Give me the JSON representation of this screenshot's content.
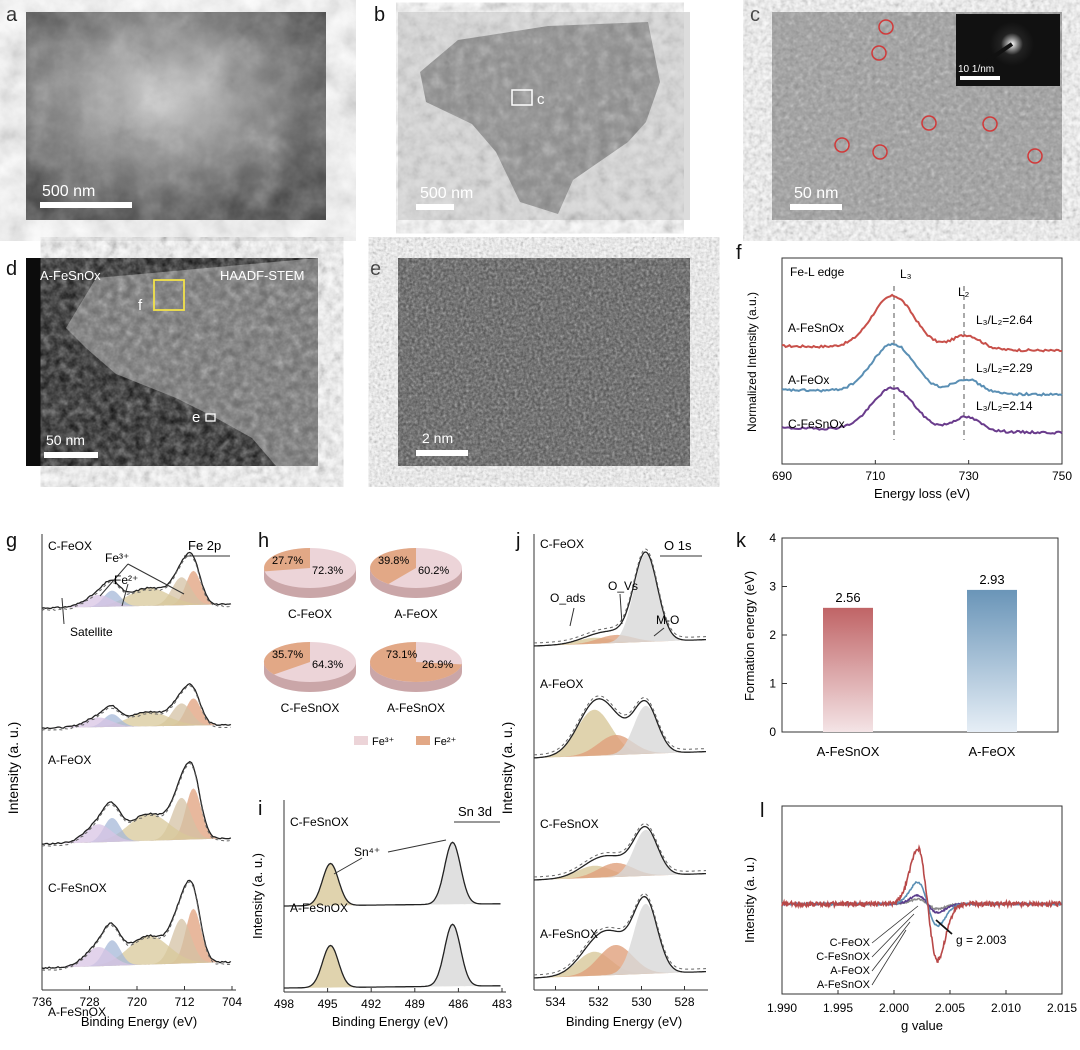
{
  "panels": {
    "a": {
      "letter": "a",
      "scale": "500 nm"
    },
    "b": {
      "letter": "b",
      "scale": "500 nm",
      "box_label": "c"
    },
    "c": {
      "letter": "c",
      "scale": "50 nm",
      "inset_scale": "10 1/nm"
    },
    "d": {
      "letter": "d",
      "sample": "A-FeSnOx",
      "mode": "HAADF-STEM",
      "scale": "50 nm",
      "label_f": "f",
      "label_e": "e"
    },
    "e": {
      "letter": "e",
      "scale": "2 nm"
    },
    "f": {
      "letter": "f",
      "title": "Fe-L edge",
      "xlabel": "Energy loss (eV)",
      "ylabel": "Normalized Intensity (a.u.)",
      "peak1": "L₃",
      "peak2": "L₂"
    },
    "g": {
      "letter": "g",
      "title": "Fe 2p",
      "xlabel": "Binding Energy (eV)",
      "ylabel": "Intensity (a. u.)",
      "fe3": "Fe³⁺",
      "fe2": "Fe²⁺",
      "satellite": "Satellite"
    },
    "h": {
      "letter": "h",
      "legend_fe3": "Fe³⁺",
      "legend_fe2": "Fe²⁺"
    },
    "i": {
      "letter": "i",
      "title": "Sn 3d",
      "xlabel": "Binding Energy (eV)",
      "ylabel": "Intensity (a. u.)",
      "sn4": "Sn⁴⁺"
    },
    "j": {
      "letter": "j",
      "title": "O 1s",
      "xlabel": "Binding Energy (eV)",
      "ylabel": "Intensity (a. u.)",
      "oads": "O_ads",
      "ovs": "O_Vs",
      "mo": "M-O"
    },
    "k": {
      "letter": "k",
      "ylabel": "Formation energy (eV)"
    },
    "l": {
      "letter": "l",
      "xlabel": "g value",
      "ylabel": "Intensity (a. u.)",
      "g_annot": "g = 2.003"
    }
  },
  "chart_data": [
    {
      "id": "f",
      "type": "line",
      "xlim": [
        690,
        750
      ],
      "xticks": [
        690,
        710,
        730,
        750
      ],
      "series": [
        {
          "name": "A-FeSnOx",
          "ratio": "L₃/L₂=2.64",
          "color": "#c8504a"
        },
        {
          "name": "A-FeOx",
          "ratio": "L₃/L₂=2.29",
          "color": "#5a8fb4"
        },
        {
          "name": "C-FeSnOx",
          "ratio": "L₃/L₂=2.14",
          "color": "#6a3c8c"
        }
      ],
      "markers": [
        714,
        729
      ]
    },
    {
      "id": "g",
      "type": "line",
      "xlim": [
        736,
        704
      ],
      "xticks": [
        736,
        728,
        720,
        712,
        704
      ],
      "series": [
        {
          "name": "C-FeOx"
        },
        {
          "name": "A-FeOx"
        },
        {
          "name": "C-FeSnOx"
        },
        {
          "name": "A-FeSnOx"
        }
      ]
    },
    {
      "id": "h",
      "type": "pie",
      "pies": [
        {
          "name": "C-FeOx",
          "fe3": 72.3,
          "fe2": 27.7,
          "fe3_label": "72.3%",
          "fe2_label": "27.7%"
        },
        {
          "name": "A-FeOx",
          "fe3": 60.2,
          "fe2": 39.8,
          "fe3_label": "60.2%",
          "fe2_label": "39.8%"
        },
        {
          "name": "C-FeSnOx",
          "fe3": 64.3,
          "fe2": 35.7,
          "fe3_label": "64.3%",
          "fe2_label": "35.7%"
        },
        {
          "name": "A-FeSnOx",
          "fe3": 26.9,
          "fe2": 73.1,
          "fe3_label": "26.9%",
          "fe2_label": "73.1%"
        }
      ],
      "colors": {
        "fe3": "#ecd4d8",
        "fe2": "#e2a886"
      }
    },
    {
      "id": "i",
      "type": "line",
      "xlim": [
        498,
        483
      ],
      "xticks": [
        498,
        495,
        492,
        489,
        486,
        483
      ],
      "series": [
        {
          "name": "C-FeSnOx"
        },
        {
          "name": "A-FeSnOx"
        }
      ],
      "peaks": [
        494.8,
        486.4
      ]
    },
    {
      "id": "j",
      "type": "line",
      "xlim": [
        535,
        527
      ],
      "xticks": [
        534,
        532,
        530,
        528
      ],
      "series": [
        {
          "name": "C-FeOx"
        },
        {
          "name": "A-FeOx"
        },
        {
          "name": "C-FeSnOx"
        },
        {
          "name": "A-FeSnOx"
        }
      ]
    },
    {
      "id": "k",
      "type": "bar",
      "categories": [
        "A-FeSnOx",
        "A-FeOx"
      ],
      "values": [
        2.56,
        2.93
      ],
      "value_labels": [
        "2.56",
        "2.93"
      ],
      "ylim": [
        0,
        4
      ],
      "yticks": [
        0,
        1,
        2,
        3,
        4
      ],
      "colors": [
        "#c06466",
        "#6a95b8"
      ]
    },
    {
      "id": "l",
      "type": "line",
      "xlim": [
        1.99,
        2.015
      ],
      "xticks": [
        "1.990",
        "1.995",
        "2.000",
        "2.005",
        "2.010",
        "2.015"
      ],
      "series": [
        {
          "name": "C-FeOx",
          "color": "#8a8a8a"
        },
        {
          "name": "C-FeSnOx",
          "color": "#5a3c8c"
        },
        {
          "name": "A-FeOx",
          "color": "#5a8fb4"
        },
        {
          "name": "A-FeSnOx",
          "color": "#b84848"
        }
      ]
    }
  ]
}
